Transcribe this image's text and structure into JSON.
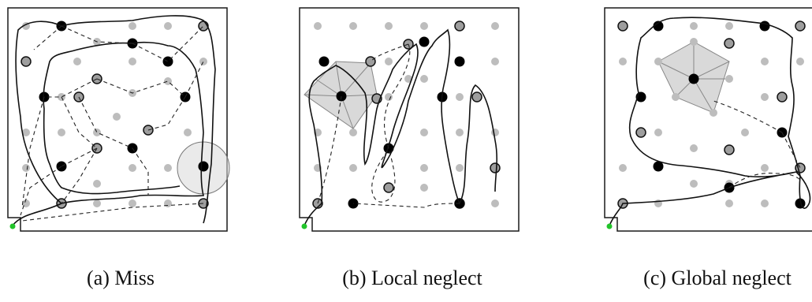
{
  "colors": {
    "border": "#1a1a1a",
    "gray_dot": "#bdbdbd",
    "visited_fill": "#9e9e9e",
    "black_dot": "#000000",
    "start_marker": "#22c42a",
    "highlight": "#d9d9d9"
  },
  "panels": [
    {
      "id": "a",
      "caption": "(a) Miss"
    },
    {
      "id": "b",
      "caption": "(b) Local neglect"
    },
    {
      "id": "c",
      "caption": "(c) Global neglect"
    }
  ]
}
